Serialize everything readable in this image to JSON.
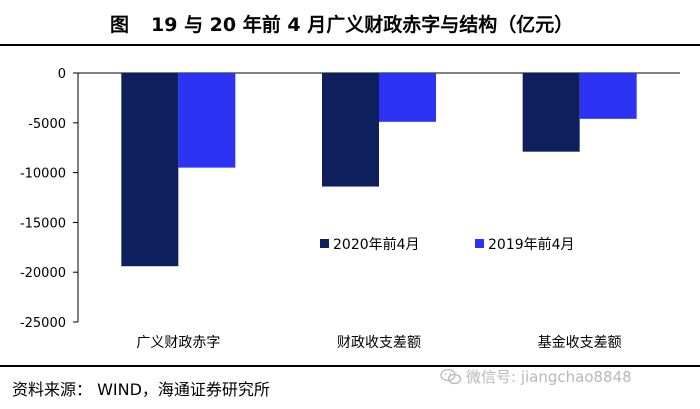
{
  "figure": {
    "label": "图",
    "title": "19 与 20 年前 4 月广义财政赤字与结构（亿元）"
  },
  "source": "资料来源：  WIND，海通证券研究所",
  "watermark": "微信号: jiangchao8848",
  "colors": {
    "series_2020": "#0d1f5c",
    "series_2019": "#2d33f2"
  },
  "chart_data": {
    "type": "bar",
    "categories": [
      "广义财政赤字",
      "财政收支差额",
      "基金收支差额"
    ],
    "series": [
      {
        "name": "2020年前4月",
        "values": [
          -19400,
          -11400,
          -7900
        ]
      },
      {
        "name": "2019年前4月",
        "values": [
          -9500,
          -4900,
          -4600
        ]
      }
    ],
    "ylim": [
      -25000,
      0
    ],
    "yticks": [
      0,
      -5000,
      -10000,
      -15000,
      -20000,
      -25000
    ],
    "ytick_labels": [
      "0",
      "-5000",
      "-10000",
      "-15000",
      "-20000",
      "-25000"
    ],
    "legend_position": "center-right",
    "grid": false,
    "xlabel": "",
    "ylabel": ""
  }
}
